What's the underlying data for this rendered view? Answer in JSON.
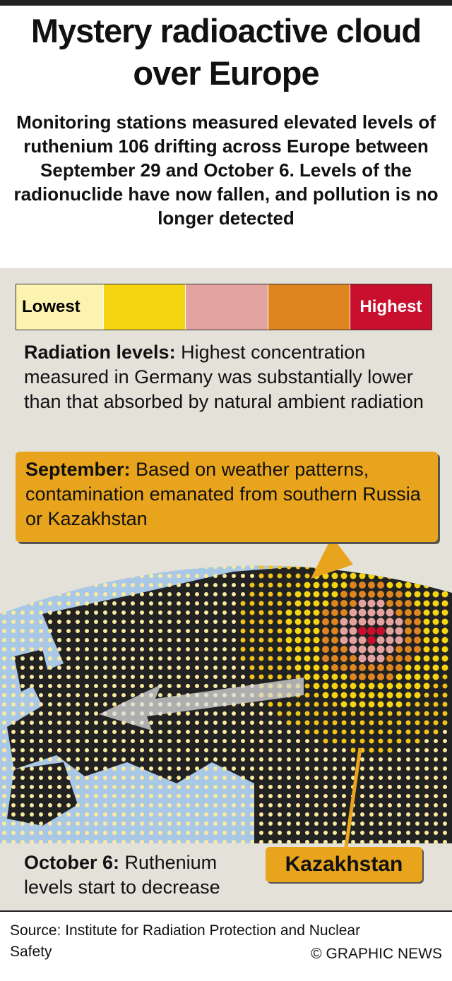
{
  "header": {
    "title": "Mystery radioactive cloud over Europe",
    "subtitle": "Monitoring stations measured elevated levels of ruthenium 106 drifting across Europe between September 29 and October 6. Levels of the radionuclide have now fallen, and pollution is no longer detected"
  },
  "legend": {
    "low": "Lowest",
    "high": "Highest"
  },
  "radiation": {
    "label": "Radiation levels:",
    "text": "Highest concentration measured in Germany was substantially lower than that absorbed by natural ambient radiation"
  },
  "september": {
    "label": "September:",
    "text": "Based on weather patterns, contamination emanated from southern Russia or Kazakhstan"
  },
  "october": {
    "label": "October 6:",
    "text": "Ruthenium levels start to decrease"
  },
  "map": {
    "kazakhstan": "Kazakhstan"
  },
  "footer": {
    "source": "Source: Institute for Radiation Protection and Nuclear Safety",
    "credit": "© GRAPHIC NEWS"
  }
}
